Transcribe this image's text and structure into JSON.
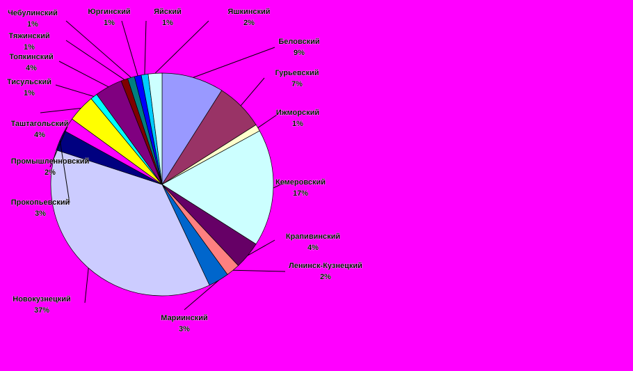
{
  "chart_data": {
    "type": "pie",
    "categories": [
      "Беловский",
      "Гурьевский",
      "Ижморский",
      "Кемеровский",
      "Крапивинский",
      "Ленинск-Кузнецкий",
      "Мариинский",
      "Новокузнецкий",
      "Прокопьевский",
      "Промышленновский",
      "Таштагольский",
      "Тисульский",
      "Топкинский",
      "Тяжинский",
      "Чебулинский",
      "Юргинский",
      "Яйский",
      "Яшкинский"
    ],
    "values": [
      9,
      7,
      1,
      17,
      4,
      2,
      3,
      37,
      3,
      2,
      4,
      1,
      4,
      1,
      1,
      1,
      1,
      2
    ],
    "value_labels": [
      "9%",
      "7%",
      "1%",
      "17%",
      "4%",
      "2%",
      "3%",
      "37%",
      "3%",
      "2%",
      "4%",
      "1%",
      "4%",
      "1%",
      "1%",
      "1%",
      "1%",
      "2%"
    ],
    "colors": [
      "#9999ff",
      "#993366",
      "#ffffcc",
      "#ccffff",
      "#660066",
      "#ff8080",
      "#0066cc",
      "#ccccff",
      "#000080",
      "#ff00ff",
      "#ffff00",
      "#00ffff",
      "#800080",
      "#800000",
      "#008080",
      "#0000ff",
      "#00ccff",
      "#ccffff"
    ]
  }
}
